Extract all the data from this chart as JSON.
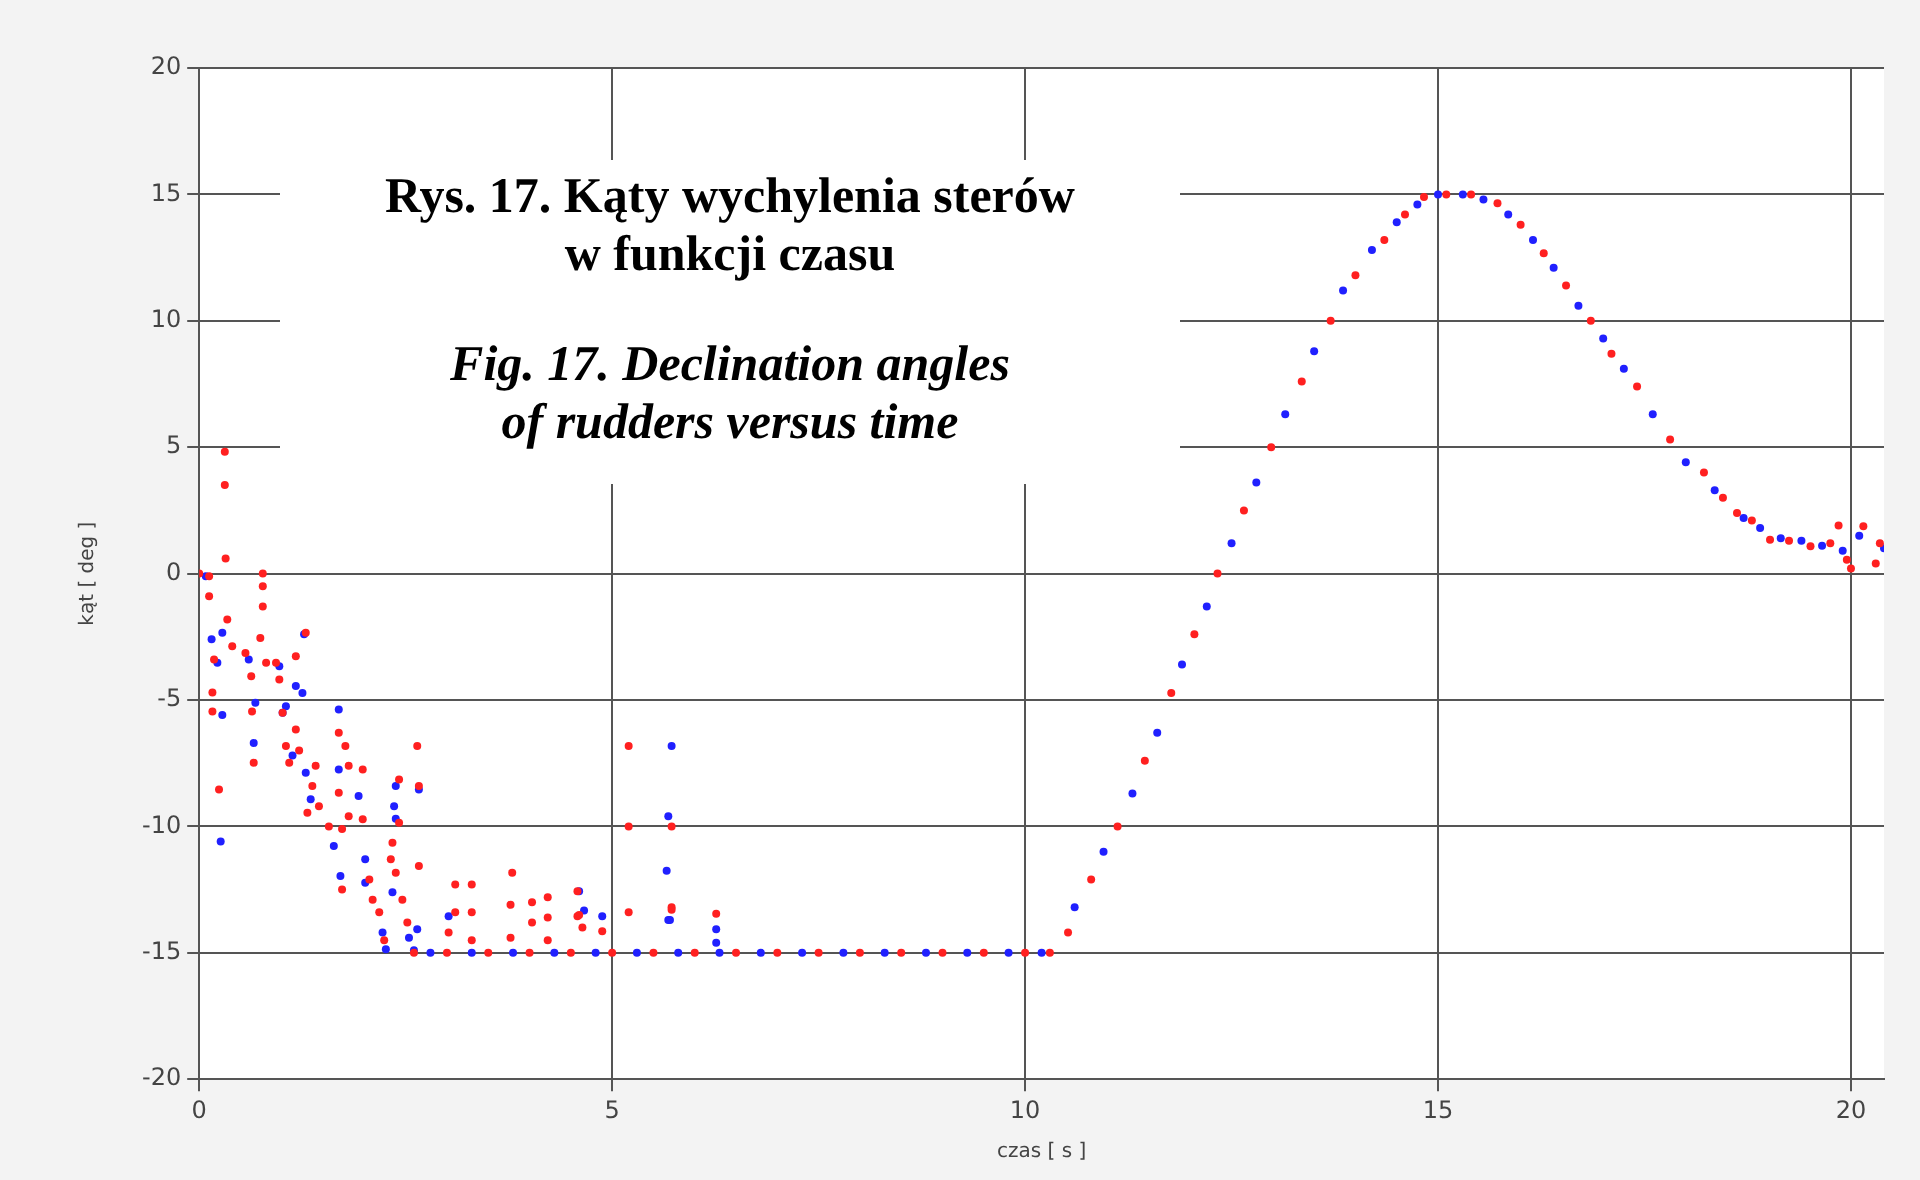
{
  "chart_data": {
    "type": "scatter",
    "title": "Rys. 17. Kąty wychylenia sterów\nw funkcji czasu",
    "subtitle": "Fig. 17. Declination angles\nof rudders versus time",
    "xlabel": "czas [ s ]",
    "ylabel": "kąt [ deg ]",
    "xlim": [
      0,
      20.4
    ],
    "xticks": [
      0,
      5,
      10,
      15,
      20
    ],
    "ylim": [
      -20,
      20
    ],
    "yticks": [
      -20,
      -15,
      -10,
      -5,
      0,
      5,
      10,
      15,
      20
    ],
    "grid": true,
    "marker": "circle",
    "series": [
      {
        "color": "#ff2020",
        "x": [
          0,
          0.12,
          0.12,
          0.31,
          0.31,
          0.32,
          0.34,
          0.18,
          0.16,
          0.16,
          0.24,
          0.4,
          0.56,
          0.77,
          0.77,
          0.77,
          0.74,
          0.81,
          0.93,
          0.63,
          0.64,
          0.66,
          0.97,
          1.01,
          1.05,
          1.09,
          1.17,
          1.17,
          1.21,
          1.29,
          1.37,
          1.45,
          1.57,
          1.41,
          1.31,
          1.69,
          1.77,
          1.69,
          1.81,
          1.73,
          1.81,
          1.98,
          1.98,
          1.73,
          2.06,
          2.1,
          2.18,
          2.24,
          2.34,
          2.32,
          2.42,
          2.42,
          2.38,
          2.46,
          2.52,
          2.64,
          2.66,
          2.66,
          3.02,
          3.1,
          3.1,
          3.3,
          3.3,
          3.3,
          3.79,
          3.77,
          3.77,
          4.03,
          4.03,
          4.22,
          4.22,
          4.22,
          4.6,
          4.64,
          5.2,
          5.2,
          5.2,
          5.72,
          5.72,
          4.58,
          4.58,
          4.88,
          6.26,
          5.72,
          2.6,
          3.0,
          3.5,
          4.0,
          4.5,
          5.0,
          5.5,
          6.0,
          6.5,
          7.0,
          7.5,
          8.0,
          8.5,
          9.0,
          9.5,
          10.0,
          10.3,
          10.52,
          10.8,
          11.12,
          11.45,
          11.77,
          12.05,
          12.33,
          12.65,
          12.98,
          13.35,
          13.7,
          14.0,
          14.35,
          14.6,
          14.83,
          15.1,
          15.4,
          15.72,
          16.0,
          16.28,
          16.55,
          16.85,
          17.1,
          17.41,
          17.81,
          18.22,
          18.45,
          18.62,
          18.8,
          19.02,
          19.25,
          19.51,
          19.75,
          19.85,
          19.95,
          20.0,
          20.15,
          20.3,
          20.35
        ],
        "values": [
          0,
          -0.1,
          -0.9,
          4.82,
          3.5,
          0.6,
          -1.82,
          -3.4,
          -4.7,
          -5.45,
          -8.54,
          -2.87,
          -3.14,
          0,
          -0.5,
          -1.3,
          -2.55,
          -3.53,
          -3.53,
          -4.06,
          -5.45,
          -7.48,
          -4.19,
          -5.5,
          -6.82,
          -7.48,
          -3.27,
          -6.17,
          -7,
          -2.34,
          -8.4,
          -9.2,
          -10,
          -7.6,
          -9.46,
          -6.3,
          -6.82,
          -8.67,
          -7.6,
          -10.1,
          -9.6,
          -7.75,
          -9.72,
          -12.5,
          -12.1,
          -12.9,
          -13.4,
          -14.5,
          -10.65,
          -11.3,
          -8.14,
          -9.86,
          -11.83,
          -12.9,
          -13.8,
          -6.82,
          -8.4,
          -11.57,
          -14.2,
          -12.3,
          -13.4,
          -12.3,
          -13.4,
          -14.5,
          -11.83,
          -13.1,
          -14.4,
          -13,
          -13.8,
          -12.8,
          -13.6,
          -14.5,
          -13.5,
          -14,
          -6.82,
          -10,
          -13.4,
          -10,
          -13.3,
          -12.57,
          -13.55,
          -14.15,
          -13.46,
          -13.2,
          -15,
          -15,
          -15,
          -15,
          -15,
          -15,
          -15,
          -15,
          -15,
          -15,
          -15,
          -15,
          -15,
          -15,
          -15,
          -15,
          -15,
          -14.2,
          -12.1,
          -10,
          -7.4,
          -4.72,
          -2.4,
          0,
          2.5,
          5,
          7.6,
          10,
          11.8,
          13.2,
          14.2,
          14.9,
          15,
          15,
          14.65,
          13.8,
          12.67,
          11.4,
          10,
          8.7,
          7.4,
          5.3,
          4,
          3,
          2.4,
          2.1,
          1.34,
          1.3,
          1.08,
          1.2,
          1.9,
          0.55,
          0.2,
          1.87,
          0.4,
          1.2
        ]
      },
      {
        "color": "#2020ff",
        "x": [
          0.08,
          0.15,
          0.22,
          0.28,
          0.28,
          0.26,
          0.6,
          0.68,
          0.66,
          0.97,
          1.01,
          1.05,
          1.13,
          1.17,
          1.25,
          1.27,
          1.29,
          1.35,
          1.63,
          1.69,
          1.69,
          1.71,
          1.93,
          2.01,
          2.01,
          2.22,
          2.26,
          2.34,
          2.36,
          2.38,
          2.38,
          2.54,
          2.64,
          2.66,
          2.6,
          3.02,
          4.6,
          4.88,
          5.72,
          5.68,
          5.68,
          4.66,
          5.66,
          5.7,
          6.26,
          6.26,
          2.8,
          3.3,
          3.8,
          4.3,
          4.8,
          5.3,
          5.8,
          6.3,
          6.8,
          7.3,
          7.8,
          8.3,
          8.8,
          9.3,
          9.8,
          10.2,
          10.6,
          10.95,
          11.3,
          11.6,
          11.9,
          12.2,
          12.5,
          12.8,
          13.15,
          13.5,
          13.85,
          14.2,
          14.5,
          14.75,
          15.0,
          15.3,
          15.55,
          15.85,
          16.15,
          16.4,
          16.7,
          17.0,
          17.25,
          17.6,
          18.0,
          18.35,
          18.7,
          18.9,
          19.15,
          19.4,
          19.65,
          19.9,
          20.1,
          20.4
        ],
        "values": [
          -0.1,
          -2.6,
          -3.53,
          -2.34,
          -5.59,
          -10.6,
          -3.4,
          -5.11,
          -6.7,
          -3.66,
          -5.5,
          -5.25,
          -7.2,
          -4.45,
          -4.72,
          -2.4,
          -7.88,
          -8.93,
          -10.78,
          -5.38,
          -7.75,
          -11.96,
          -8.8,
          -11.3,
          -12.23,
          -14.2,
          -14.86,
          -12.6,
          -9.2,
          -9.7,
          -8.4,
          -14.4,
          -14.07,
          -8.54,
          -14.9,
          -13.55,
          -12.57,
          -13.55,
          -6.82,
          -9.6,
          -13.7,
          -13.33,
          -11.75,
          -13.7,
          -14.07,
          -14.6,
          -15,
          -15,
          -15,
          -15,
          -15,
          -15,
          -15,
          -15,
          -15,
          -15,
          -15,
          -15,
          -15,
          -15,
          -15,
          -15,
          -13.2,
          -11,
          -8.7,
          -6.3,
          -3.6,
          -1.3,
          1.2,
          3.6,
          6.3,
          8.8,
          11.2,
          12.8,
          13.9,
          14.6,
          15,
          15,
          14.8,
          14.2,
          13.2,
          12.1,
          10.6,
          9.3,
          8.1,
          6.3,
          4.4,
          3.3,
          2.2,
          1.8,
          1.4,
          1.3,
          1.1,
          0.9,
          1.5,
          1
        ]
      }
    ]
  }
}
